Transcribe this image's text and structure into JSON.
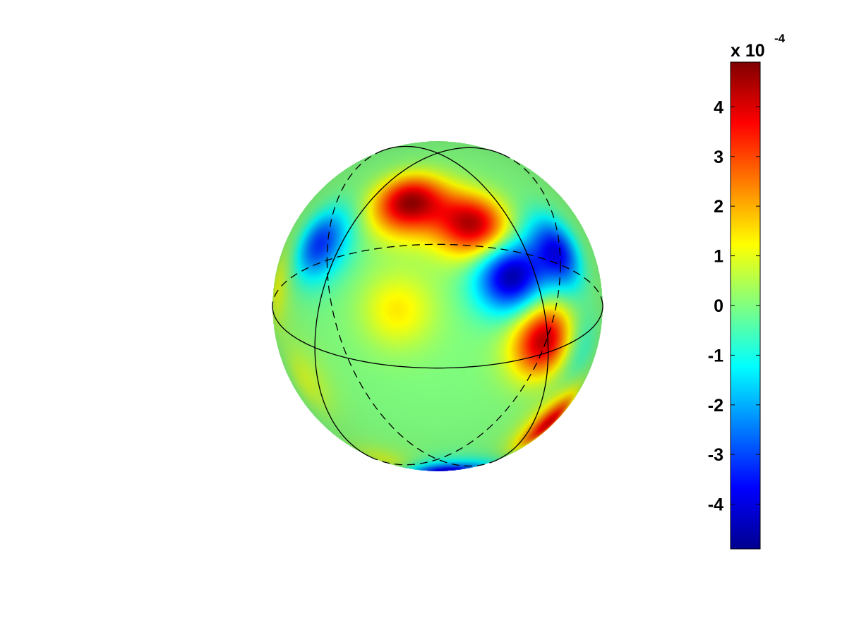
{
  "chart_data": {
    "type": "heatmap",
    "plot": "sphere-surface",
    "colormap": "jet",
    "color_limits": [
      -4.9,
      4.9
    ],
    "colorbar": {
      "location": "right",
      "ticks": [
        4,
        3,
        2,
        1,
        0,
        -1,
        -2,
        -3,
        -4
      ],
      "tick_labels": [
        "4",
        "3",
        "2",
        "1",
        "0",
        "-1",
        "-2",
        "-3",
        "-4"
      ],
      "exponent_prefix": "x 10",
      "exponent_power": "-4"
    },
    "reference_circles": [
      "equator",
      "meridian",
      "meridian"
    ],
    "blobs": [
      {
        "lon": -20,
        "lat": 60,
        "value": 4.6
      },
      {
        "lon": 20,
        "lat": 50,
        "value": 4.5
      },
      {
        "lon": 40,
        "lat": 5,
        "value": 4.4
      },
      {
        "lon": 55,
        "lat": -35,
        "value": 4.0
      },
      {
        "lon": 30,
        "lat": 30,
        "value": -4.6
      },
      {
        "lon": 58,
        "lat": 32,
        "value": -3.8
      },
      {
        "lon": -60,
        "lat": 35,
        "value": -3.2
      },
      {
        "lon": 5,
        "lat": -62,
        "value": -4.2
      },
      {
        "lon": -15,
        "lat": 20,
        "value": 1.4
      },
      {
        "lon": -80,
        "lat": 10,
        "value": 1.0
      },
      {
        "lon": -25,
        "lat": -55,
        "value": 1.2
      },
      {
        "lon": 60,
        "lat": -5,
        "value": -0.7
      },
      {
        "lon": -55,
        "lat": -15,
        "value": 0.8
      }
    ]
  }
}
